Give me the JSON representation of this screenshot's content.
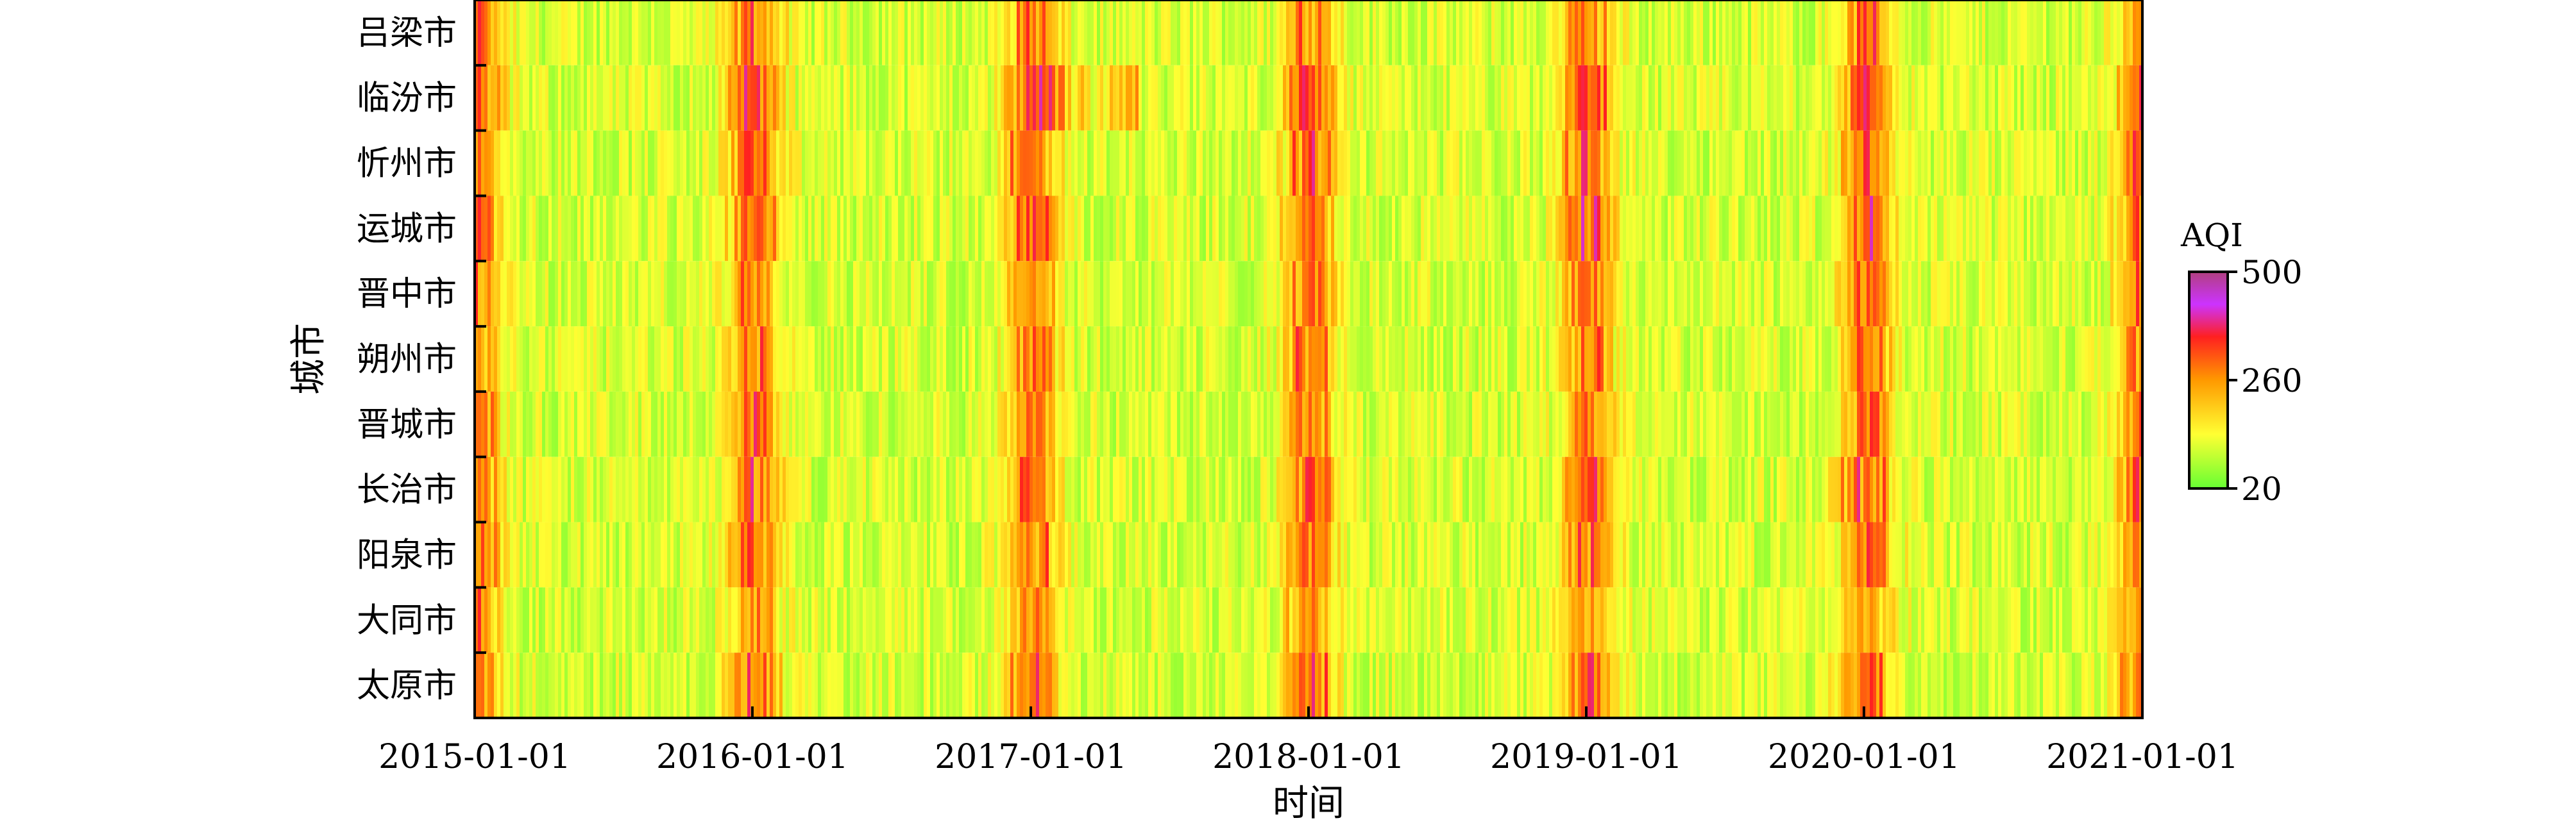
{
  "chart_data": {
    "type": "heatmap",
    "xlabel": "时间",
    "ylabel": "城市",
    "x_range": [
      "2015-01-01",
      "2021-01-01"
    ],
    "x_ticks": [
      "2015-01-01",
      "2016-01-01",
      "2017-01-01",
      "2018-01-01",
      "2019-01-01",
      "2020-01-01",
      "2021-01-01"
    ],
    "categories": [
      "吕梁市",
      "临汾市",
      "忻州市",
      "运城市",
      "晋中市",
      "朔州市",
      "晋城市",
      "长治市",
      "阳泉市",
      "大同市",
      "太原市"
    ],
    "colorbar": {
      "title": "AQI",
      "range": [
        20,
        500
      ],
      "ticks": [
        "500",
        "260",
        "20"
      ],
      "colors": [
        "#66ff33",
        "#ffff33",
        "#ff9900",
        "#ff2020",
        "#cc33ff",
        "#b04080"
      ]
    }
  }
}
